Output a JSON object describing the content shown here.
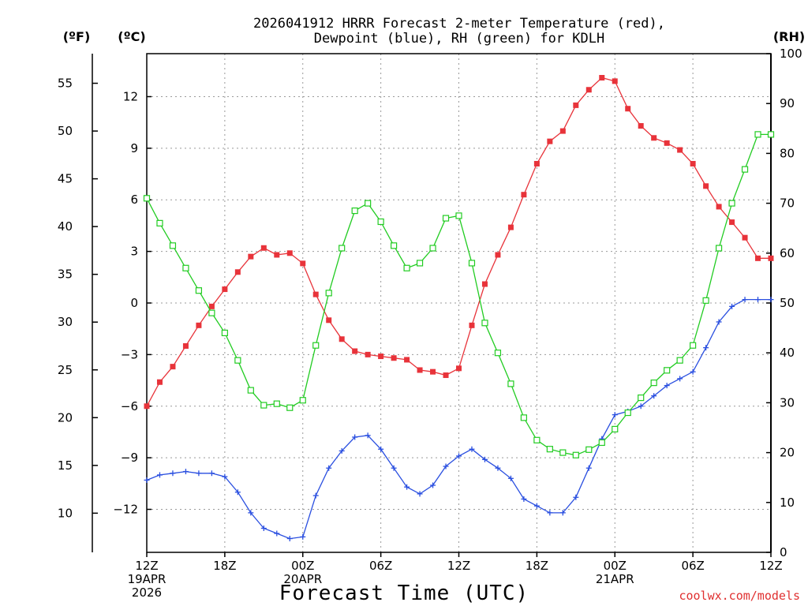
{
  "chart_data": {
    "type": "line",
    "title": "2026041912 HRRR Forecast 2-meter Temperature (red),",
    "subtitle": "Dewpoint (blue), RH (green) for KDLH",
    "xlabel": "Forecast Time (UTC)",
    "y_left_outer_unit": "(ºF)",
    "y_left_inner_unit": "(ºC)",
    "y_right_unit": "(RH)",
    "credit": "coolwx.com/models",
    "x_range_hours": [
      0,
      48
    ],
    "c_range": [
      -14.5,
      14.5
    ],
    "f_ticks": [
      10,
      15,
      20,
      25,
      30,
      35,
      40,
      45,
      50,
      55
    ],
    "c_ticks": [
      -12,
      -9,
      -6,
      -3,
      0,
      3,
      6,
      9,
      12
    ],
    "rh_ticks": [
      0,
      10,
      20,
      30,
      40,
      50,
      60,
      70,
      80,
      90,
      100
    ],
    "rh_range": [
      0,
      100
    ],
    "x_ticks": [
      {
        "hour": 0,
        "lines": [
          "12Z",
          "19APR",
          "2026"
        ]
      },
      {
        "hour": 6,
        "lines": [
          "18Z"
        ]
      },
      {
        "hour": 12,
        "lines": [
          "00Z",
          "20APR"
        ]
      },
      {
        "hour": 18,
        "lines": [
          "06Z"
        ]
      },
      {
        "hour": 24,
        "lines": [
          "12Z"
        ]
      },
      {
        "hour": 30,
        "lines": [
          "18Z"
        ]
      },
      {
        "hour": 36,
        "lines": [
          "00Z",
          "21APR"
        ]
      },
      {
        "hour": 42,
        "lines": [
          "06Z"
        ]
      },
      {
        "hour": 48,
        "lines": [
          "12Z"
        ]
      }
    ],
    "series": [
      {
        "name": "Temperature",
        "color": "#e8333a",
        "marker": "filled-square",
        "unit": "C",
        "values": [
          -6.0,
          -4.6,
          -3.7,
          -2.5,
          -1.3,
          -0.2,
          0.8,
          1.8,
          2.7,
          3.2,
          2.8,
          2.9,
          2.3,
          0.5,
          -1.0,
          -2.1,
          -2.8,
          -3.0,
          -3.1,
          -3.2,
          -3.3,
          -3.9,
          -4.0,
          -4.2,
          -3.8,
          -1.3,
          1.1,
          2.8,
          4.4,
          6.3,
          8.1,
          9.4,
          10.0,
          11.5,
          12.4,
          13.1,
          12.9,
          11.3,
          10.3,
          9.6,
          9.3,
          8.9,
          8.1,
          6.8,
          5.6,
          4.7,
          3.8,
          2.6,
          2.6
        ]
      },
      {
        "name": "Dewpoint",
        "color": "#2a4fe0",
        "marker": "plus",
        "unit": "C",
        "values": [
          -10.3,
          -10.0,
          -9.9,
          -9.8,
          -9.9,
          -9.9,
          -10.1,
          -11.0,
          -12.2,
          -13.1,
          -13.4,
          -13.7,
          -13.6,
          -11.2,
          -9.6,
          -8.6,
          -7.8,
          -7.7,
          -8.5,
          -9.6,
          -10.7,
          -11.1,
          -10.6,
          -9.5,
          -8.9,
          -8.5,
          -9.1,
          -9.6,
          -10.2,
          -11.4,
          -11.8,
          -12.2,
          -12.2,
          -11.3,
          -9.6,
          -7.9,
          -6.5,
          -6.3,
          -6.0,
          -5.4,
          -4.8,
          -4.4,
          -4.0,
          -2.6,
          -1.1,
          -0.2,
          0.2,
          0.2,
          0.2
        ]
      },
      {
        "name": "RH",
        "color": "#22cc22",
        "marker": "open-square",
        "unit": "%",
        "values": [
          71,
          66,
          61.5,
          57,
          52.5,
          48,
          44,
          38.5,
          32.5,
          29.5,
          29.8,
          29,
          30.5,
          41.5,
          52,
          61,
          68.5,
          70,
          66.3,
          61.5,
          57,
          58,
          61,
          67,
          67.5,
          58,
          46,
          40,
          33.8,
          27,
          22.5,
          20.7,
          20,
          19.5,
          20.6,
          22,
          24.7,
          28,
          31,
          34,
          36.5,
          38.5,
          41.5,
          50.5,
          61,
          70,
          76.8,
          83.8,
          83.8
        ]
      }
    ]
  }
}
